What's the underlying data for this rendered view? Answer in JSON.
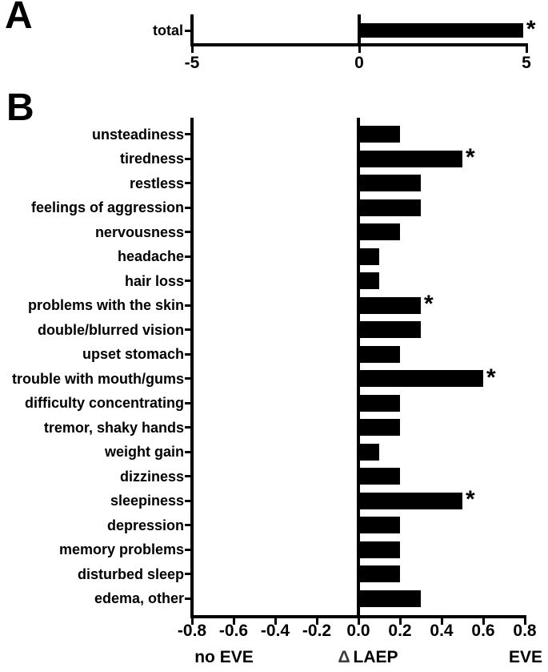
{
  "figure": {
    "background": "#ffffff",
    "panels": [
      {
        "id": "A",
        "letter": "A"
      },
      {
        "id": "B",
        "letter": "B"
      }
    ]
  },
  "colors": {
    "bar": "#000000",
    "axis": "#000000",
    "text": "#000000",
    "delta_outline": "#3d3d3d"
  },
  "chart_data": [
    {
      "panel": "A",
      "type": "bar",
      "orientation": "horizontal",
      "categories": [
        "total"
      ],
      "values": [
        4.9
      ],
      "significant": [
        true
      ],
      "significance_marker": "*",
      "xlim": [
        -5,
        5
      ],
      "xtick_values": [
        -5,
        0,
        5
      ],
      "xtick_labels": [
        "-5",
        "0",
        "5"
      ],
      "grid": false,
      "bar_color": "#000000"
    },
    {
      "panel": "B",
      "type": "bar",
      "orientation": "horizontal",
      "categories": [
        "unsteadiness",
        "tiredness",
        "restless",
        "feelings of aggression",
        "nervousness",
        "headache",
        "hair loss",
        "problems with the skin",
        "double/blurred vision",
        "upset stomach",
        "trouble with mouth/gums",
        "difficulty concentrating",
        "tremor, shaky hands",
        "weight gain",
        "dizziness",
        "sleepiness",
        "depression",
        "memory problems",
        "disturbed sleep",
        "edema, other"
      ],
      "values": [
        0.2,
        0.5,
        0.3,
        0.3,
        0.2,
        0.1,
        0.1,
        0.3,
        0.3,
        0.2,
        0.6,
        0.2,
        0.2,
        0.1,
        0.2,
        0.5,
        0.2,
        0.2,
        0.2,
        0.3
      ],
      "significant": [
        false,
        true,
        false,
        false,
        false,
        false,
        false,
        true,
        false,
        false,
        true,
        false,
        false,
        false,
        false,
        true,
        false,
        false,
        false,
        false
      ],
      "significance_marker": "*",
      "xlim": [
        -0.8,
        0.8
      ],
      "xtick_values": [
        -0.8,
        -0.6,
        -0.4,
        -0.2,
        0.0,
        0.2,
        0.4,
        0.6,
        0.8
      ],
      "xtick_labels": [
        "-0.8",
        "-0.6",
        "-0.4",
        "-0.2",
        "0.0",
        "0.2",
        "0.4",
        "0.6",
        "0.8"
      ],
      "axis_caption_left": "no EVE",
      "axis_caption_center_symbol": "Δ",
      "axis_caption_center_text": "LAEP",
      "axis_caption_right": "EVE",
      "grid": false,
      "bar_color": "#000000"
    }
  ]
}
